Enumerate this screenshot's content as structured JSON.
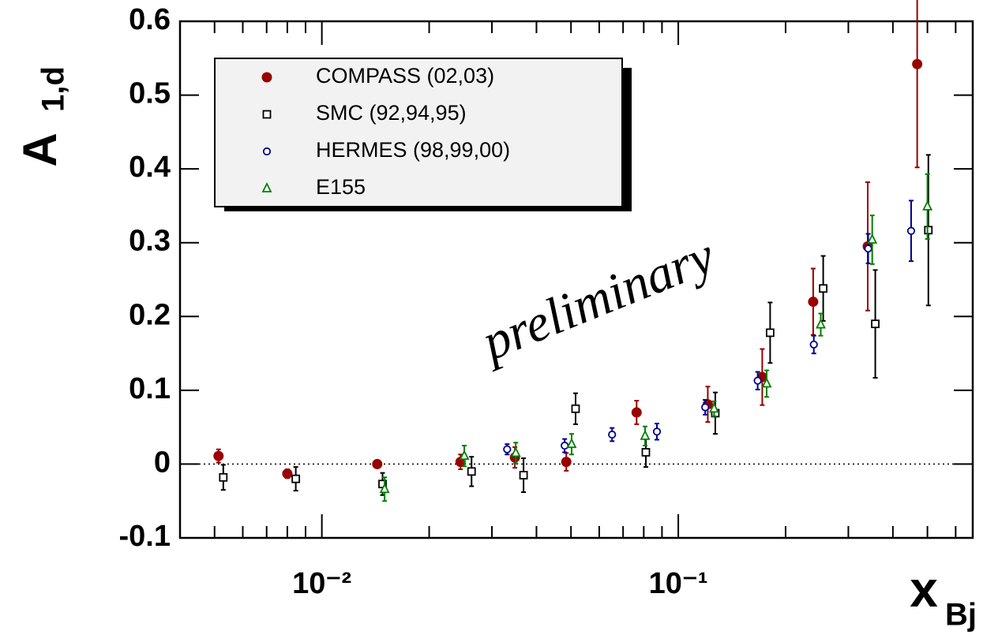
{
  "chart_data": {
    "type": "scatter",
    "ylabel": "A",
    "ylabel_subscript": "1,d",
    "xlabel": "x",
    "xlabel_subscript": "Bj",
    "annotation": "preliminary",
    "xscale": "log",
    "xlim": [
      0.004,
      0.67
    ],
    "ylim": [
      -0.1,
      0.6
    ],
    "xticks": [
      {
        "value": 0.01,
        "label": "10⁻²"
      },
      {
        "value": 0.1,
        "label": "10⁻¹"
      }
    ],
    "xminorticks": [
      0.005,
      0.006,
      0.007,
      0.008,
      0.009,
      0.02,
      0.03,
      0.04,
      0.05,
      0.06,
      0.07,
      0.08,
      0.09,
      0.2,
      0.3,
      0.4,
      0.5,
      0.6
    ],
    "yticks": [
      -0.1,
      0,
      0.1,
      0.2,
      0.3,
      0.4,
      0.5,
      0.6
    ],
    "reference_line": 0,
    "legend": "upper left",
    "series": [
      {
        "name": "COMPASS (02,03)",
        "color": "#990000",
        "marker": "filled-circle",
        "x": [
          0.00513,
          0.008,
          0.0143,
          0.0245,
          0.0348,
          0.0485,
          0.0764,
          0.121,
          0.172,
          0.239,
          0.34,
          0.468
        ],
        "values": [
          0.011,
          -0.013,
          0.0,
          0.003,
          0.009,
          0.003,
          0.07,
          0.081,
          0.118,
          0.22,
          0.295,
          0.542
        ],
        "errors": [
          0.009,
          0.006,
          0.005,
          0.01,
          0.014,
          0.012,
          0.016,
          0.024,
          0.038,
          0.045,
          0.087,
          0.14
        ]
      },
      {
        "name": "SMC (92,94,95)",
        "color": "#000000",
        "marker": "open-square",
        "x": [
          0.00529,
          0.00845,
          0.0148,
          0.0263,
          0.0368,
          0.0515,
          0.0811,
          0.127,
          0.181,
          0.255,
          0.357,
          0.503
        ],
        "values": [
          -0.018,
          -0.02,
          -0.027,
          -0.01,
          -0.015,
          0.075,
          0.016,
          0.069,
          0.178,
          0.238,
          0.19,
          0.317
        ],
        "errors": [
          0.017,
          0.016,
          0.015,
          0.02,
          0.023,
          0.021,
          0.02,
          0.028,
          0.041,
          0.044,
          0.073,
          0.102
        ]
      },
      {
        "name": "HERMES (98,99,00)",
        "color": "#00008b",
        "marker": "open-circle",
        "x": [
          0.0331,
          0.048,
          0.0652,
          0.0871,
          0.119,
          0.167,
          0.24,
          0.341,
          0.45
        ],
        "values": [
          0.02,
          0.025,
          0.04,
          0.044,
          0.077,
          0.113,
          0.162,
          0.292,
          0.316
        ],
        "errors": [
          0.007,
          0.009,
          0.009,
          0.011,
          0.01,
          0.012,
          0.012,
          0.02,
          0.041
        ]
      },
      {
        "name": "E155",
        "color": "#008000",
        "marker": "open-triangle",
        "x": [
          0.015,
          0.0251,
          0.035,
          0.0502,
          0.0807,
          0.126,
          0.177,
          0.251,
          0.35,
          0.5
        ],
        "values": [
          -0.034,
          0.011,
          0.015,
          0.027,
          0.038,
          0.075,
          0.109,
          0.189,
          0.304,
          0.349
        ],
        "errors": [
          0.016,
          0.014,
          0.014,
          0.014,
          0.013,
          0.01,
          0.018,
          0.015,
          0.033,
          0.044
        ]
      }
    ]
  }
}
